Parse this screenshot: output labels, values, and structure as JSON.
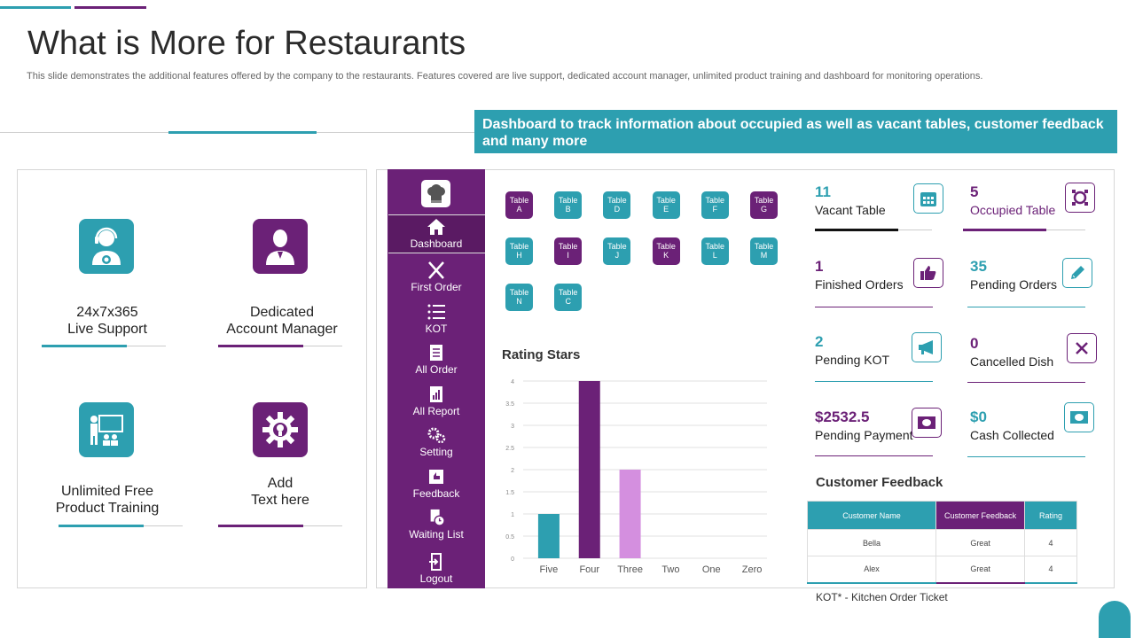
{
  "header": {
    "title": "What is More for Restaurants",
    "subtitle": "This slide demonstrates the additional features offered by the company to the restaurants. Features covered are live support, dedicated account manager, unlimited product training and dashboard for monitoring operations.",
    "banner": "Dashboard to track information about occupied as well as vacant tables, customer feedback and many more"
  },
  "features": [
    {
      "line1": "24x7x365",
      "line2": "Live Support",
      "icon": "support-agent-icon"
    },
    {
      "line1": "Dedicated",
      "line2": "Account Manager",
      "icon": "manager-icon"
    },
    {
      "line1": "Unlimited Free",
      "line2": "Product Training",
      "icon": "training-icon"
    },
    {
      "line1": "Add",
      "line2": "Text here",
      "icon": "gear-bulb-icon"
    }
  ],
  "sidebar": {
    "items": [
      "Dashboard",
      "First Order",
      "KOT",
      "All Order",
      "All Report",
      "Setting",
      "Feedback",
      "Waiting List",
      "Logout"
    ]
  },
  "tables": [
    {
      "line1": "Table",
      "line2": "A",
      "status": "purple"
    },
    {
      "line1": "Table",
      "line2": "B",
      "status": "teal"
    },
    {
      "line1": "Table",
      "line2": "D",
      "status": "teal"
    },
    {
      "line1": "Table",
      "line2": "E",
      "status": "teal"
    },
    {
      "line1": "Table",
      "line2": "F",
      "status": "teal"
    },
    {
      "line1": "Table",
      "line2": "G",
      "status": "purple"
    },
    {
      "line1": "Table",
      "line2": "H",
      "status": "teal"
    },
    {
      "line1": "Table",
      "line2": "I",
      "status": "purple"
    },
    {
      "line1": "Table",
      "line2": "J",
      "status": "teal"
    },
    {
      "line1": "Table",
      "line2": "K",
      "status": "purple"
    },
    {
      "line1": "Table",
      "line2": "L",
      "status": "teal"
    },
    {
      "line1": "Table",
      "line2": "M",
      "status": "teal"
    },
    {
      "line1": "Table",
      "line2": "N",
      "status": "teal"
    },
    {
      "line1": "Table",
      "line2": "C",
      "status": "teal"
    }
  ],
  "chart_data": {
    "type": "bar",
    "title": "Rating Stars",
    "categories": [
      "Five",
      "Four",
      "Three",
      "Two",
      "One",
      "Zero"
    ],
    "values": [
      1,
      4,
      2,
      0,
      0,
      0
    ],
    "colors": [
      "#2d9fb0",
      "#6b2177",
      "#d48fdf",
      "#2d9fb0",
      "#2d9fb0",
      "#2d9fb0"
    ],
    "yticks": [
      "0",
      "0.5",
      "1",
      "1.5",
      "2",
      "2.5",
      "3",
      "3.5",
      "4"
    ],
    "ylim": [
      0,
      4
    ]
  },
  "stats": [
    {
      "value": "11",
      "label": "Vacant Table",
      "icon": "calendar-icon"
    },
    {
      "value": "5",
      "label": "Occupied Table",
      "icon": "target-icon"
    },
    {
      "value": "1",
      "label": "Finished Orders",
      "icon": "thumbs-up-icon"
    },
    {
      "value": "35",
      "label": "Pending Orders",
      "icon": "pencil-icon"
    },
    {
      "value": "2",
      "label": "Pending KOT",
      "icon": "megaphone-icon"
    },
    {
      "value": "0",
      "label": "Cancelled Dish",
      "icon": "cutlery-icon"
    },
    {
      "value": "$2532.5",
      "label": "Pending Payment",
      "icon": "cash-icon"
    },
    {
      "value": "$0",
      "label": "Cash Collected",
      "icon": "cash-icon"
    }
  ],
  "feedback": {
    "title": "Customer Feedback",
    "headers": [
      "Customer Name",
      "Customer Feedback",
      "Rating"
    ],
    "rows": [
      [
        "Bella",
        "Great",
        "4"
      ],
      [
        "Alex",
        "Great",
        "4"
      ]
    ],
    "note": "KOT* - Kitchen Order Ticket"
  },
  "colors": {
    "teal": "#2d9fb0",
    "purple": "#6b2177",
    "light_purple": "#d48fdf"
  }
}
